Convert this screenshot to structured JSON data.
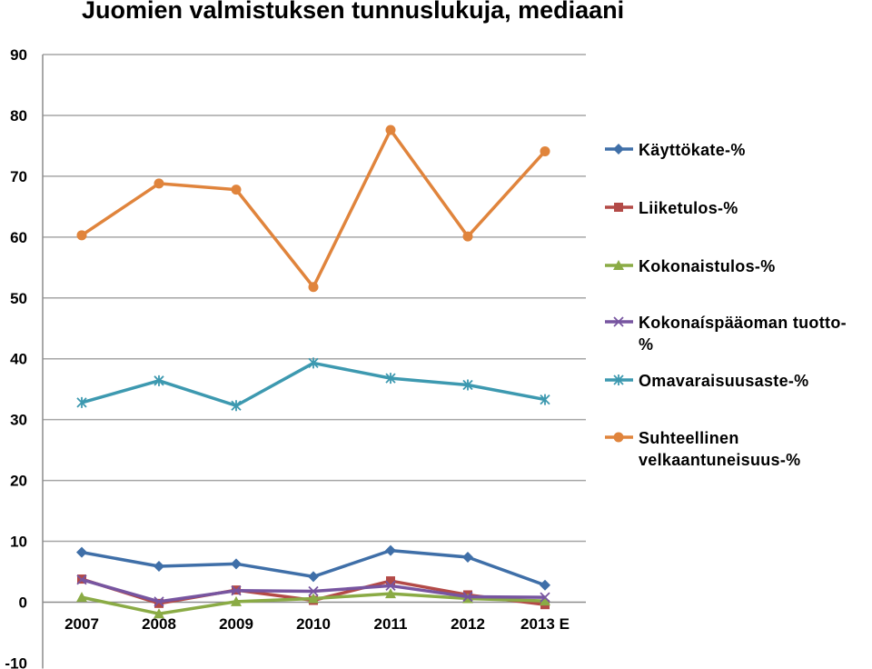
{
  "chart_data": {
    "type": "line",
    "title": "Juomien valmistuksen tunnuslukuja, mediaani",
    "xlabel": "",
    "ylabel": "",
    "categories": [
      "2007",
      "2008",
      "2009",
      "2010",
      "2011",
      "2012",
      "2013 E"
    ],
    "ylim": [
      -10,
      90
    ],
    "y_ticks": [
      "-10",
      "0",
      "10",
      "20",
      "30",
      "40",
      "50",
      "60",
      "70",
      "80",
      "90"
    ],
    "grid": "horizontal",
    "legend_position": "right",
    "series": [
      {
        "name": "Käyttökate-%",
        "color": "#3f6fa8",
        "marker": "diamond",
        "values": [
          8.2,
          5.9,
          6.3,
          4.2,
          8.5,
          7.4,
          2.8
        ]
      },
      {
        "name": "Liiketulos-%",
        "color": "#b34a47",
        "marker": "square",
        "values": [
          3.8,
          -0.2,
          2.0,
          0.3,
          3.5,
          1.2,
          -0.4
        ]
      },
      {
        "name": "Kokonaistulos-%",
        "color": "#8aab45",
        "marker": "triangle",
        "values": [
          0.8,
          -1.9,
          0.1,
          0.6,
          1.4,
          0.6,
          0.2
        ]
      },
      {
        "name": "Kokonaíspääoman tuotto-%",
        "legend_lines": [
          "Kokonaíspääoman tuotto-",
          "%"
        ],
        "color": "#7755a0",
        "marker": "x",
        "values": [
          3.7,
          0.1,
          1.9,
          1.8,
          2.7,
          0.9,
          0.8
        ]
      },
      {
        "name": "Omavaraisuusaste-%",
        "color": "#3d99b0",
        "marker": "star",
        "values": [
          32.8,
          36.4,
          32.3,
          39.3,
          36.8,
          35.7,
          33.3
        ]
      },
      {
        "name": "Suhteellinen velkaantuneisuus-%",
        "legend_lines": [
          "Suhteellinen",
          "velkaantuneisuus-%"
        ],
        "color": "#e0843c",
        "marker": "circle",
        "values": [
          60.3,
          68.8,
          67.8,
          51.8,
          77.6,
          60.1,
          74.1
        ]
      }
    ]
  }
}
